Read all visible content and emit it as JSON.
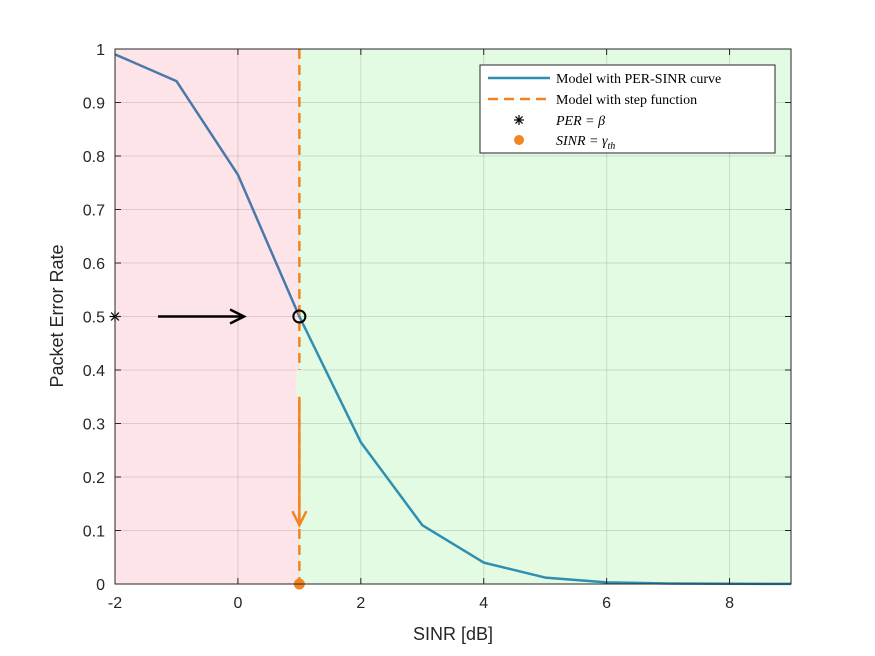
{
  "chart_data": {
    "type": "line",
    "xlabel": "SINR [dB]",
    "ylabel": "Packet Error Rate",
    "xlim": [
      -2,
      9
    ],
    "ylim": [
      0,
      1
    ],
    "xticks": [
      -2,
      0,
      2,
      4,
      6,
      8
    ],
    "yticks": [
      0,
      0.1,
      0.2,
      0.3,
      0.4,
      0.5,
      0.6,
      0.7,
      0.8,
      0.9,
      1
    ],
    "grid": true,
    "legend_position": "top-right",
    "regions": [
      {
        "x_from": -2,
        "x_to": 1,
        "color": "#fde4e8"
      },
      {
        "x_from": 1,
        "x_to": 9,
        "color": "#e2fbe2"
      }
    ],
    "series": [
      {
        "name": "Model with PER-SINR curve",
        "style": "solid",
        "color": "#4a78a8",
        "color_end": "#2f8fb0",
        "x": [
          -2,
          -1,
          0,
          1,
          2,
          3,
          4,
          5,
          6,
          7,
          8,
          9
        ],
        "y": [
          0.99,
          0.94,
          0.765,
          0.5,
          0.265,
          0.11,
          0.04,
          0.012,
          0.003,
          0.001,
          0.0005,
          0.0002
        ]
      },
      {
        "name": "Model with step function",
        "style": "dashed",
        "color": "#f28522",
        "x": [
          1,
          1
        ],
        "y": [
          1,
          0
        ]
      }
    ],
    "markers": [
      {
        "name": "PER = β",
        "label_main": "PER = ",
        "label_symbol": "β",
        "symbol": "asterisk",
        "x": -2,
        "y": 0.5,
        "color": "#000000"
      },
      {
        "name": "SINR = γth",
        "label_main": "SINR = ",
        "label_symbol": "γ",
        "label_sub": "th",
        "symbol": "circle-filled",
        "x": 1,
        "y": 0,
        "color": "#f28522"
      },
      {
        "name": "threshold point",
        "symbol": "circle-open",
        "x": 1,
        "y": 0.5,
        "color": "#000000"
      }
    ],
    "annotations": [
      {
        "type": "arrow",
        "from": [
          -1.3,
          0.5
        ],
        "to": [
          0.1,
          0.5
        ],
        "color": "#000000"
      },
      {
        "type": "arrow",
        "from": [
          1,
          0.35
        ],
        "to": [
          1,
          0.11
        ],
        "color": "#f28522"
      }
    ]
  }
}
